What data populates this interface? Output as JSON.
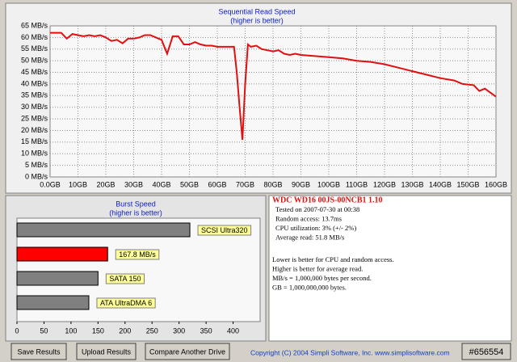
{
  "chart_data": [
    {
      "type": "line",
      "title": "Sequential Read Speed",
      "subtitle": "(higher is better)",
      "x": [
        0,
        2,
        4,
        6,
        8,
        10,
        12,
        14,
        16,
        18,
        20,
        22,
        24,
        26,
        28,
        30,
        32,
        34,
        36,
        38,
        40,
        42,
        44,
        46,
        48,
        50,
        52,
        54,
        56,
        58,
        60,
        62,
        64,
        66,
        67,
        68,
        69,
        70,
        71,
        72,
        74,
        76,
        78,
        80,
        82,
        84,
        86,
        88,
        90,
        95,
        100,
        105,
        110,
        115,
        120,
        125,
        130,
        135,
        140,
        145,
        148,
        152,
        154,
        156,
        160
      ],
      "values": [
        62,
        62,
        62,
        59.5,
        61.5,
        61,
        60.5,
        61,
        60.5,
        61,
        60,
        58.5,
        59,
        57.5,
        59.5,
        59.5,
        60,
        61,
        61,
        60,
        59,
        53,
        60.5,
        60.5,
        57,
        57,
        58,
        57,
        56.5,
        56.5,
        56,
        56,
        56,
        56,
        45,
        30,
        16,
        40,
        57,
        56,
        56.5,
        55,
        54.5,
        54,
        54.5,
        53,
        52.5,
        53,
        52.5,
        52,
        51.5,
        51,
        50,
        49.5,
        48.5,
        47,
        45.5,
        44,
        42.5,
        41.5,
        40,
        39.5,
        37,
        38,
        34.5
      ],
      "color": "#e01010",
      "grid": true,
      "xlim": [
        0,
        160
      ],
      "xticks": [
        {
          "value": 0,
          "label": "0.0GB"
        },
        {
          "value": 10,
          "label": "10GB"
        },
        {
          "value": 20,
          "label": "20GB"
        },
        {
          "value": 30,
          "label": "30GB"
        },
        {
          "value": 40,
          "label": "40GB"
        },
        {
          "value": 50,
          "label": "50GB"
        },
        {
          "value": 60,
          "label": "60GB"
        },
        {
          "value": 70,
          "label": "70GB"
        },
        {
          "value": 80,
          "label": "80GB"
        },
        {
          "value": 90,
          "label": "90GB"
        },
        {
          "value": 100,
          "label": "100GB"
        },
        {
          "value": 110,
          "label": "110GB"
        },
        {
          "value": 120,
          "label": "120GB"
        },
        {
          "value": 130,
          "label": "130GB"
        },
        {
          "value": 140,
          "label": "140GB"
        },
        {
          "value": 150,
          "label": "150GB"
        },
        {
          "value": 160,
          "label": "160GB"
        }
      ],
      "ylim": [
        0,
        65
      ],
      "yticks": [
        {
          "value": 0,
          "label": "0 MB/s"
        },
        {
          "value": 5,
          "label": "5 MB/s"
        },
        {
          "value": 10,
          "label": "10 MB/s"
        },
        {
          "value": 15,
          "label": "15 MB/s"
        },
        {
          "value": 20,
          "label": "20 MB/s"
        },
        {
          "value": 25,
          "label": "25 MB/s"
        },
        {
          "value": 30,
          "label": "30 MB/s"
        },
        {
          "value": 35,
          "label": "35 MB/s"
        },
        {
          "value": 40,
          "label": "40 MB/s"
        },
        {
          "value": 45,
          "label": "45 MB/s"
        },
        {
          "value": 50,
          "label": "50 MB/s"
        },
        {
          "value": 55,
          "label": "55 MB/s"
        },
        {
          "value": 60,
          "label": "60 MB/s"
        },
        {
          "value": 65,
          "label": "65 MB/s"
        }
      ]
    },
    {
      "type": "hbar",
      "title": "Burst Speed",
      "subtitle": "(higher is better)",
      "categories": [
        "SCSI Ultra320",
        null,
        "SATA 150",
        "ATA UltraDMA 6"
      ],
      "values": [
        320,
        167.8,
        150,
        133
      ],
      "value_labels": [
        null,
        "167.8 MB/s",
        null,
        null
      ],
      "colors": [
        "#808080",
        "#ff0000",
        "#808080",
        "#808080"
      ],
      "xlim": [
        0,
        450
      ],
      "xticks": [
        0,
        50,
        100,
        150,
        200,
        250,
        300,
        350,
        400
      ]
    }
  ],
  "info": {
    "title": "WDC WD16 00JS-00NCB1 1.10",
    "details": [
      "Tested on 2007-07-30 at 00:38",
      "Random access: 13.7ms",
      "CPU utilization: 3% (+/- 2%)",
      "Average read: 51.8 MB/s"
    ],
    "notes": [
      "Lower is better for CPU and random access.",
      "Higher is better for average read.",
      "MB/s = 1,000,000 bytes per second.",
      "GB = 1,000,000,000 bytes."
    ]
  },
  "buttons": [
    "Save Results",
    "Upload Results",
    "Compare Another Drive"
  ],
  "copyright": "Copyright (C) 2004 Simpli Software, Inc. www.simplisoftware.com",
  "watermark": "#656554"
}
